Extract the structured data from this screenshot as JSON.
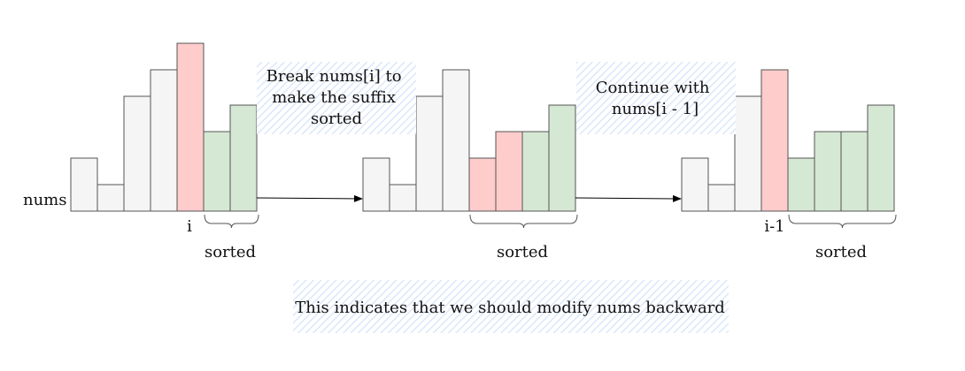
{
  "colors": {
    "plain_fill": "#f5f5f5",
    "highlight_fill": "#ffcccc",
    "sorted_fill": "#d5e8d4",
    "stroke": "#555555",
    "note_hatch": "#dae8fc"
  },
  "row_label": "nums",
  "panels": [
    {
      "bars": [
        {
          "h": 2,
          "kind": "plain"
        },
        {
          "h": 1,
          "kind": "plain"
        },
        {
          "h": 4.333,
          "kind": "plain"
        },
        {
          "h": 5.333,
          "kind": "plain"
        },
        {
          "h": 6.333,
          "kind": "highlight"
        },
        {
          "h": 3,
          "kind": "sorted"
        },
        {
          "h": 4,
          "kind": "sorted"
        }
      ],
      "index_label": "i",
      "index_at": 4,
      "brace": [
        5,
        6
      ],
      "brace_label": "sorted"
    },
    {
      "bars": [
        {
          "h": 2,
          "kind": "plain"
        },
        {
          "h": 1,
          "kind": "plain"
        },
        {
          "h": 4.333,
          "kind": "plain"
        },
        {
          "h": 5.333,
          "kind": "plain"
        },
        {
          "h": 2,
          "kind": "highlight"
        },
        {
          "h": 3,
          "kind": "highlight"
        },
        {
          "h": 3,
          "kind": "sorted"
        },
        {
          "h": 4,
          "kind": "sorted"
        }
      ],
      "index_label": "",
      "index_at": null,
      "brace": [
        4,
        7
      ],
      "brace_label": "sorted"
    },
    {
      "bars": [
        {
          "h": 2,
          "kind": "plain"
        },
        {
          "h": 1,
          "kind": "plain"
        },
        {
          "h": 4.333,
          "kind": "plain"
        },
        {
          "h": 5.333,
          "kind": "highlight"
        },
        {
          "h": 2,
          "kind": "sorted"
        },
        {
          "h": 3,
          "kind": "sorted"
        },
        {
          "h": 3,
          "kind": "sorted"
        },
        {
          "h": 4,
          "kind": "sorted"
        }
      ],
      "index_label": "i-1",
      "index_at": 3,
      "brace": [
        4,
        7
      ],
      "brace_label": "sorted"
    }
  ],
  "notes": [
    {
      "lines": [
        "Break nums[i] to",
        "make the suffix",
        "sorted"
      ]
    },
    {
      "lines": [
        "Continue with",
        "nums[i - 1]"
      ]
    },
    {
      "lines": [
        "This indicates that we should modify nums backward"
      ]
    }
  ]
}
